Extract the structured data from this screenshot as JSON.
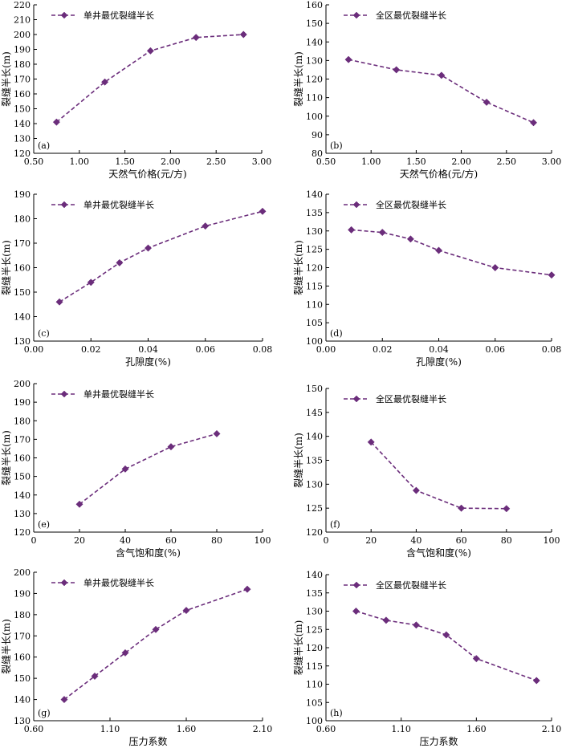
{
  "style": {
    "series_color": "#6b2d7b",
    "axis_color": "#000000"
  },
  "chart_data": [
    {
      "id": "a",
      "type": "line",
      "panel_label": "(a)",
      "xlabel": "天然气价格(元/方)",
      "ylabel": "裂缝半长(m)",
      "legend": "单井最优裂缝半长",
      "legend_position": "top-left",
      "xlim": [
        0.5,
        3.0
      ],
      "ylim": [
        120,
        220
      ],
      "xticks": [
        "0.50",
        "1.00",
        "1.50",
        "2.00",
        "2.50",
        "3.00"
      ],
      "yticks": [
        "120",
        "130",
        "140",
        "150",
        "160",
        "170",
        "180",
        "190",
        "200",
        "210",
        "220"
      ],
      "series": [
        {
          "x": [
            0.75,
            1.28,
            1.78,
            2.28,
            2.8
          ],
          "y": [
            141,
            168,
            189,
            198,
            200
          ]
        }
      ]
    },
    {
      "id": "b",
      "type": "line",
      "panel_label": "(b)",
      "xlabel": "天然气价格(元/方)",
      "ylabel": "裂缝半长(m)",
      "legend": "全区最优裂缝半长",
      "legend_position": "top-left",
      "xlim": [
        0.5,
        3.0
      ],
      "ylim": [
        80,
        160
      ],
      "xticks": [
        "0.50",
        "1.00",
        "1.50",
        "2.00",
        "2.50",
        "3.00"
      ],
      "yticks": [
        "80",
        "90",
        "100",
        "110",
        "120",
        "130",
        "140",
        "150",
        "160"
      ],
      "series": [
        {
          "x": [
            0.75,
            1.28,
            1.78,
            2.28,
            2.8
          ],
          "y": [
            130.5,
            125,
            122,
            107.5,
            96.5
          ]
        }
      ]
    },
    {
      "id": "c",
      "type": "line",
      "panel_label": "(c)",
      "xlabel": "孔隙度(%)",
      "ylabel": "裂缝半长(m)",
      "legend": "单井最优裂缝半长",
      "legend_position": "top-left",
      "xlim": [
        0,
        0.08
      ],
      "ylim": [
        130,
        190
      ],
      "xticks": [
        "0.00",
        "0.02",
        "0.04",
        "0.06",
        "0.08"
      ],
      "yticks": [
        "130",
        "140",
        "150",
        "160",
        "170",
        "180",
        "190"
      ],
      "series": [
        {
          "x": [
            0.009,
            0.02,
            0.03,
            0.04,
            0.06,
            0.08
          ],
          "y": [
            146,
            154,
            162,
            168,
            177,
            183
          ]
        }
      ]
    },
    {
      "id": "d",
      "type": "line",
      "panel_label": "(d)",
      "xlabel": "孔隙度(%)",
      "ylabel": "裂缝半长(m)",
      "legend": "全区最优裂缝半长",
      "legend_position": "top-left",
      "xlim": [
        0,
        0.08
      ],
      "ylim": [
        100,
        140
      ],
      "xticks": [
        "0.00",
        "0.02",
        "0.04",
        "0.06",
        "0.08"
      ],
      "yticks": [
        "100",
        "105",
        "110",
        "115",
        "120",
        "125",
        "130",
        "135",
        "140"
      ],
      "series": [
        {
          "x": [
            0.009,
            0.02,
            0.03,
            0.04,
            0.06,
            0.08
          ],
          "y": [
            130.3,
            129.6,
            127.8,
            124.7,
            120,
            118
          ]
        }
      ]
    },
    {
      "id": "e",
      "type": "line",
      "panel_label": "(e)",
      "xlabel": "含气饱和度(%)",
      "ylabel": "裂缝半长(m)",
      "legend": "单井最优裂缝半长",
      "legend_position": "top-left",
      "xlim": [
        0,
        100
      ],
      "ylim": [
        120,
        200
      ],
      "xticks": [
        "0",
        "20",
        "40",
        "60",
        "80",
        "100"
      ],
      "yticks": [
        "120",
        "130",
        "140",
        "150",
        "160",
        "170",
        "180",
        "190",
        "200"
      ],
      "series": [
        {
          "x": [
            20,
            40,
            60,
            80
          ],
          "y": [
            135,
            154,
            166,
            173
          ]
        }
      ]
    },
    {
      "id": "f",
      "type": "line",
      "panel_label": "(f)",
      "xlabel": "含气饱和度(%)",
      "ylabel": "裂缝半长(m)",
      "legend": "全区最优裂缝半长",
      "legend_position": "top-left",
      "xlim": [
        0,
        100
      ],
      "ylim": [
        120,
        150
      ],
      "xticks": [
        "0",
        "20",
        "40",
        "60",
        "80",
        "100"
      ],
      "yticks": [
        "120",
        "125",
        "130",
        "135",
        "140",
        "145",
        "150"
      ],
      "series": [
        {
          "x": [
            20,
            40,
            60,
            80
          ],
          "y": [
            138.8,
            128.7,
            125,
            124.9
          ]
        }
      ]
    },
    {
      "id": "g",
      "type": "line",
      "panel_label": "(g)",
      "xlabel": "压力系数",
      "ylabel": "裂缝半长(m)",
      "legend": "单井最优裂缝半长",
      "legend_position": "top-left",
      "xlim": [
        0.6,
        2.1
      ],
      "ylim": [
        130,
        200
      ],
      "xticks": [
        "0.60",
        "1.10",
        "1.60",
        "2.10"
      ],
      "yticks": [
        "130",
        "140",
        "150",
        "160",
        "170",
        "180",
        "190",
        "200"
      ],
      "series": [
        {
          "x": [
            0.8,
            1.0,
            1.2,
            1.4,
            1.6,
            2.0
          ],
          "y": [
            140,
            151,
            162,
            173,
            182,
            192
          ]
        }
      ]
    },
    {
      "id": "h",
      "type": "line",
      "panel_label": "(h)",
      "xlabel": "压力系数",
      "ylabel": "裂缝半长(m)",
      "legend": "全区最优裂缝半长",
      "legend_position": "top-left",
      "xlim": [
        0.6,
        2.1
      ],
      "ylim": [
        100,
        140
      ],
      "xticks": [
        "0.60",
        "1.10",
        "1.60",
        "2.10"
      ],
      "yticks": [
        "100",
        "105",
        "110",
        "115",
        "120",
        "125",
        "130",
        "135",
        "140"
      ],
      "series": [
        {
          "x": [
            0.8,
            1.0,
            1.2,
            1.4,
            1.6,
            2.0
          ],
          "y": [
            130,
            127.5,
            126.2,
            123.5,
            117,
            111
          ]
        }
      ]
    }
  ]
}
